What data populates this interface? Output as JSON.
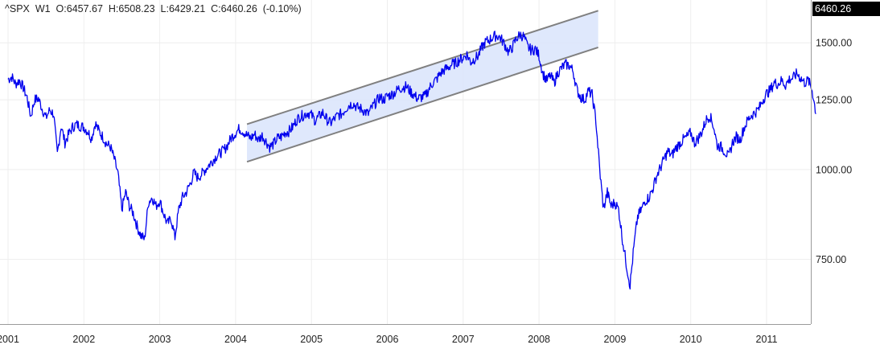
{
  "header": {
    "symbol": "^SPX",
    "timeframe": "W1",
    "open": "O:6457.67",
    "high": "H:6508.23",
    "low": "L:6429.21",
    "close": "C:6460.26",
    "change": "(-0.10%)"
  },
  "last_price_badge": "6460.26",
  "colors": {
    "series": "#0000ee",
    "channel_fill": "#d9e4fb",
    "channel_line": "#808080",
    "grid": "#eeeeee",
    "badge_bg": "#000000"
  },
  "chart_data": {
    "type": "line",
    "title": "",
    "xlabel": "",
    "ylabel": "",
    "y_scale": "log",
    "ylim": [
      610,
      1720
    ],
    "xlim": [
      2001.0,
      2011.78
    ],
    "grid": true,
    "x_ticks": [
      {
        "value": 2001,
        "label": "2001"
      },
      {
        "value": 2002,
        "label": "2002"
      },
      {
        "value": 2003,
        "label": "2003"
      },
      {
        "value": 2004,
        "label": "2004"
      },
      {
        "value": 2005,
        "label": "2005"
      },
      {
        "value": 2006,
        "label": "2006"
      },
      {
        "value": 2007,
        "label": "2007"
      },
      {
        "value": 2008,
        "label": "2008"
      },
      {
        "value": 2009,
        "label": "2009"
      },
      {
        "value": 2010,
        "label": "2010"
      },
      {
        "value": 2011,
        "label": "2011"
      }
    ],
    "y_ticks": [
      {
        "value": 750,
        "label": "750.00"
      },
      {
        "value": 1000,
        "label": "1000.00"
      },
      {
        "value": 1250,
        "label": "1250.00"
      },
      {
        "value": 1500,
        "label": "1500.00"
      }
    ],
    "series": [
      {
        "x": [
          2001.0,
          2001.05,
          2001.1,
          2001.15,
          2001.2,
          2001.25,
          2001.3,
          2001.35,
          2001.4,
          2001.45,
          2001.5,
          2001.55,
          2001.6,
          2001.65,
          2001.7,
          2001.75,
          2001.8,
          2001.85,
          2001.9,
          2001.95,
          2002.0,
          2002.05,
          2002.1,
          2002.15,
          2002.2,
          2002.25,
          2002.3,
          2002.35,
          2002.4,
          2002.45,
          2002.5,
          2002.55,
          2002.6,
          2002.65,
          2002.7,
          2002.75,
          2002.8,
          2002.85,
          2002.9,
          2002.95,
          2003.0,
          2003.05,
          2003.1,
          2003.15,
          2003.2,
          2003.25,
          2003.3,
          2003.35,
          2003.4,
          2003.45,
          2003.5,
          2003.55,
          2003.6,
          2003.65,
          2003.7,
          2003.75,
          2003.8,
          2003.85,
          2003.9,
          2003.95,
          2004.0,
          2004.05,
          2004.1,
          2004.15,
          2004.2,
          2004.25,
          2004.3,
          2004.35,
          2004.4,
          2004.45,
          2004.5,
          2004.55,
          2004.6,
          2004.65,
          2004.7,
          2004.75,
          2004.8,
          2004.85,
          2004.9,
          2004.95,
          2005.0,
          2005.05,
          2005.1,
          2005.15,
          2005.2,
          2005.25,
          2005.3,
          2005.35,
          2005.4,
          2005.45,
          2005.5,
          2005.55,
          2005.6,
          2005.65,
          2005.7,
          2005.75,
          2005.8,
          2005.85,
          2005.9,
          2005.95,
          2006.0,
          2006.05,
          2006.1,
          2006.15,
          2006.2,
          2006.25,
          2006.3,
          2006.35,
          2006.4,
          2006.45,
          2006.5,
          2006.55,
          2006.6,
          2006.65,
          2006.7,
          2006.75,
          2006.8,
          2006.85,
          2006.9,
          2006.95,
          2007.0,
          2007.05,
          2007.1,
          2007.15,
          2007.2,
          2007.25,
          2007.3,
          2007.35,
          2007.4,
          2007.45,
          2007.5,
          2007.55,
          2007.6,
          2007.65,
          2007.7,
          2007.75,
          2007.8,
          2007.85,
          2007.9,
          2007.95,
          2008.0,
          2008.05,
          2008.1,
          2008.15,
          2008.2,
          2008.25,
          2008.3,
          2008.35,
          2008.4,
          2008.45,
          2008.5,
          2008.55,
          2008.6,
          2008.65,
          2008.7,
          2008.75,
          2008.8,
          2008.85,
          2008.9,
          2008.95,
          2009.0,
          2009.05,
          2009.1,
          2009.15,
          2009.2,
          2009.25,
          2009.3,
          2009.35,
          2009.4,
          2009.45,
          2009.5,
          2009.55,
          2009.6,
          2009.65,
          2009.7,
          2009.75,
          2009.8,
          2009.85,
          2009.9,
          2009.95,
          2010.0,
          2010.05,
          2010.1,
          2010.15,
          2010.2,
          2010.25,
          2010.3,
          2010.35,
          2010.4,
          2010.45,
          2010.5,
          2010.55,
          2010.6,
          2010.65,
          2010.7,
          2010.75,
          2010.8,
          2010.85,
          2010.9,
          2010.95,
          2011.0,
          2011.05,
          2011.1,
          2011.15,
          2011.2,
          2011.25,
          2011.3,
          2011.35,
          2011.4,
          2011.45,
          2011.5,
          2011.55,
          2011.6,
          2011.65
        ],
        "values": [
          1335,
          1345,
          1315,
          1330,
          1300,
          1260,
          1185,
          1250,
          1255,
          1215,
          1180,
          1210,
          1195,
          1050,
          1150,
          1090,
          1120,
          1145,
          1155,
          1150,
          1145,
          1130,
          1105,
          1160,
          1130,
          1110,
          1085,
          1075,
          1035,
          985,
          880,
          930,
          890,
          870,
          835,
          810,
          800,
          900,
          915,
          890,
          905,
          870,
          840,
          855,
          805,
          880,
          915,
          930,
          955,
          990,
          975,
          985,
          1000,
          1015,
          1030,
          1045,
          1055,
          1065,
          1085,
          1110,
          1125,
          1140,
          1130,
          1115,
          1105,
          1120,
          1100,
          1115,
          1095,
          1075,
          1085,
          1105,
          1110,
          1125,
          1130,
          1145,
          1170,
          1185,
          1190,
          1200,
          1190,
          1170,
          1185,
          1200,
          1175,
          1160,
          1175,
          1190,
          1195,
          1215,
          1230,
          1235,
          1220,
          1215,
          1205,
          1195,
          1220,
          1240,
          1260,
          1250,
          1265,
          1270,
          1280,
          1295,
          1300,
          1305,
          1285,
          1270,
          1255,
          1260,
          1265,
          1295,
          1320,
          1335,
          1360,
          1375,
          1385,
          1400,
          1405,
          1420,
          1430,
          1445,
          1410,
          1425,
          1440,
          1480,
          1505,
          1515,
          1530,
          1535,
          1520,
          1490,
          1455,
          1480,
          1520,
          1540,
          1530,
          1480,
          1465,
          1470,
          1440,
          1360,
          1330,
          1350,
          1320,
          1365,
          1385,
          1400,
          1395,
          1370,
          1290,
          1260,
          1250,
          1285,
          1270,
          1170,
          1000,
          880,
          930,
          890,
          900,
          880,
          800,
          740,
          690,
          780,
          860,
          880,
          905,
          915,
          940,
          980,
          1005,
          1035,
          1060,
          1045,
          1070,
          1085,
          1100,
          1110,
          1125,
          1090,
          1105,
          1130,
          1170,
          1190,
          1150,
          1080,
          1075,
          1060,
          1040,
          1090,
          1110,
          1100,
          1140,
          1170,
          1190,
          1200,
          1215,
          1250,
          1275,
          1290,
          1320,
          1315,
          1330,
          1310,
          1335,
          1340,
          1360,
          1340,
          1320,
          1330,
          1290,
          1200
        ]
      }
    ],
    "channel": {
      "upper": {
        "x": [
          2004.15,
          2008.78
        ],
        "y": [
          1156,
          1662
        ]
      },
      "lower": {
        "x": [
          2004.15,
          2008.78
        ],
        "y": [
          1025,
          1478
        ]
      }
    }
  }
}
